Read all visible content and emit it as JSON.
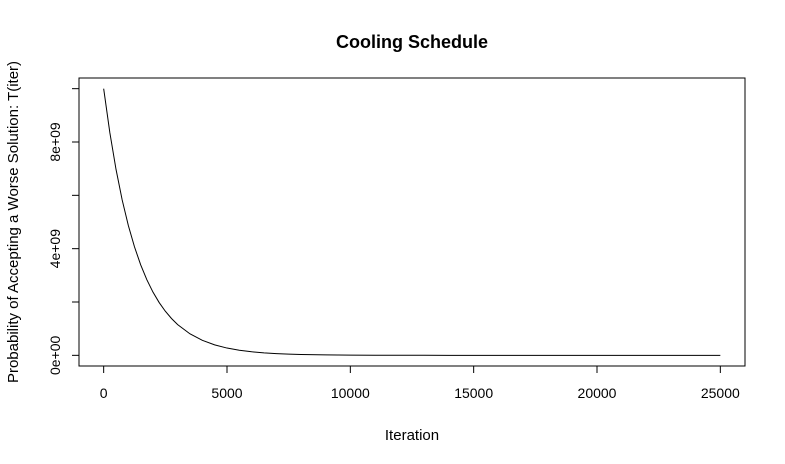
{
  "chart_data": {
    "type": "line",
    "title": "Cooling Schedule",
    "xlabel": "Iteration",
    "ylabel": "Probability of Accepting a Worse Solution: T(iter)",
    "xlim": [
      -1000,
      26000
    ],
    "ylim": [
      -400000000,
      10400000000
    ],
    "x_ticks": [
      0,
      5000,
      10000,
      15000,
      20000,
      25000
    ],
    "x_tick_labels": [
      "0",
      "5000",
      "10000",
      "15000",
      "20000",
      "25000"
    ],
    "y_ticks": [
      0,
      2000000000,
      4000000000,
      6000000000,
      8000000000,
      10000000000
    ],
    "y_tick_labels": [
      "0e+00",
      "",
      "4e+09",
      "",
      "8e+09",
      ""
    ],
    "series": [
      {
        "color": "#000000",
        "x": [
          0,
          250,
          500,
          750,
          1000,
          1250,
          1500,
          1750,
          2000,
          2250,
          2500,
          2750,
          3000,
          3500,
          4000,
          4500,
          5000,
          5500,
          6000,
          6500,
          7000,
          7500,
          8000,
          9000,
          10000,
          11000,
          12000,
          13000,
          14000,
          15000,
          16000,
          17000,
          18000,
          19000,
          20000,
          21000,
          22000,
          23000,
          24000,
          25000
        ],
        "y": [
          10000000000,
          8353000000,
          6977000000,
          5827000000,
          4868000000,
          4066000000,
          3396000000,
          2837000000,
          2369000000,
          1979000000,
          1653000000,
          1381000000,
          1153000000,
          805000000,
          562000000,
          392000000,
          273000000,
          191000000,
          133000000,
          93000000,
          65000000,
          45000000,
          32000000,
          15000000,
          7000000,
          3400000,
          1600000,
          800000,
          400000,
          200000,
          100000,
          40000,
          20000,
          10000,
          5000,
          2000,
          1000,
          500,
          200,
          100
        ]
      }
    ]
  }
}
